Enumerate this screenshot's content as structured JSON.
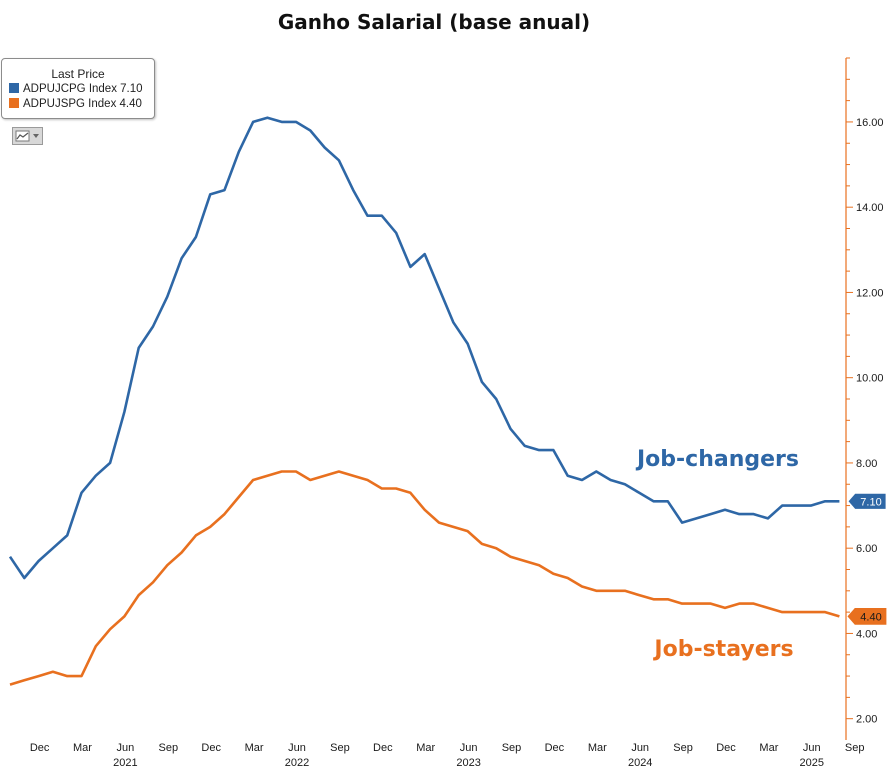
{
  "title": "Ganho Salarial (base anual)",
  "legend": {
    "header": "Last Price",
    "items": [
      {
        "label": "ADPUJCPG Index 7.10",
        "color": "#2e67a6"
      },
      {
        "label": "ADPUJSPG Index 4.40",
        "color": "#e8701f"
      }
    ]
  },
  "toolbar": {
    "icon": "chart-type-icon",
    "dropdown_icon": "chevron-down-icon"
  },
  "colors": {
    "changers": "#2e67a6",
    "stayers": "#e8701f",
    "axis": "#e8701f",
    "text": "#1a1a1a"
  },
  "chart_data": {
    "type": "line",
    "title": "Ganho Salarial (base anual)",
    "xlabel": "",
    "ylabel": "",
    "ylim": [
      1.5,
      17.5
    ],
    "y_ticks": [
      "2.00",
      "4.00",
      "6.00",
      "8.00",
      "10.00",
      "12.00",
      "14.00",
      "16.00"
    ],
    "y_axis_position": "right",
    "x_ticks": [
      {
        "month": "Dec",
        "year": ""
      },
      {
        "month": "Mar",
        "year": ""
      },
      {
        "month": "Jun",
        "year": "2021"
      },
      {
        "month": "Sep",
        "year": ""
      },
      {
        "month": "Dec",
        "year": ""
      },
      {
        "month": "Mar",
        "year": ""
      },
      {
        "month": "Jun",
        "year": "2022"
      },
      {
        "month": "Sep",
        "year": ""
      },
      {
        "month": "Dec",
        "year": ""
      },
      {
        "month": "Mar",
        "year": ""
      },
      {
        "month": "Jun",
        "year": "2023"
      },
      {
        "month": "Sep",
        "year": ""
      },
      {
        "month": "Dec",
        "year": ""
      },
      {
        "month": "Mar",
        "year": ""
      },
      {
        "month": "Jun",
        "year": "2024"
      },
      {
        "month": "Sep",
        "year": ""
      },
      {
        "month": "Dec",
        "year": ""
      },
      {
        "month": "Mar",
        "year": ""
      },
      {
        "month": "Jun",
        "year": "2025"
      },
      {
        "month": "Sep",
        "year": ""
      }
    ],
    "x": [
      "2020-10",
      "2020-11",
      "2020-12",
      "2021-01",
      "2021-02",
      "2021-03",
      "2021-04",
      "2021-05",
      "2021-06",
      "2021-07",
      "2021-08",
      "2021-09",
      "2021-10",
      "2021-11",
      "2021-12",
      "2022-01",
      "2022-02",
      "2022-03",
      "2022-04",
      "2022-05",
      "2022-06",
      "2022-07",
      "2022-08",
      "2022-09",
      "2022-10",
      "2022-11",
      "2022-12",
      "2023-01",
      "2023-02",
      "2023-03",
      "2023-04",
      "2023-05",
      "2023-06",
      "2023-07",
      "2023-08",
      "2023-09",
      "2023-10",
      "2023-11",
      "2023-12",
      "2024-01",
      "2024-02",
      "2024-03",
      "2024-04",
      "2024-05",
      "2024-06",
      "2024-07",
      "2024-08",
      "2024-09",
      "2024-10",
      "2024-11",
      "2024-12",
      "2025-01",
      "2025-02",
      "2025-03",
      "2025-04",
      "2025-05",
      "2025-06",
      "2025-07",
      "2025-08"
    ],
    "series": [
      {
        "name": "ADPUJCPG Index",
        "label": "Job-changers",
        "last_value": "7.10",
        "values": [
          5.8,
          5.3,
          5.7,
          6.0,
          6.3,
          7.3,
          7.7,
          8.0,
          9.2,
          10.7,
          11.2,
          11.9,
          12.8,
          13.3,
          14.3,
          14.4,
          15.3,
          16.0,
          16.1,
          16.0,
          16.0,
          15.8,
          15.4,
          15.1,
          14.4,
          13.8,
          13.8,
          13.4,
          12.6,
          12.9,
          12.1,
          11.3,
          10.8,
          9.9,
          9.5,
          8.8,
          8.4,
          8.3,
          8.3,
          7.7,
          7.6,
          7.8,
          7.6,
          7.5,
          7.3,
          7.1,
          7.1,
          6.6,
          6.7,
          6.8,
          6.9,
          6.8,
          6.8,
          6.7,
          7.0,
          7.0,
          7.0,
          7.1,
          7.1
        ]
      },
      {
        "name": "ADPUJSPG Index",
        "label": "Job-stayers",
        "last_value": "4.40",
        "values": [
          2.8,
          2.9,
          3.0,
          3.1,
          3.0,
          3.0,
          3.7,
          4.1,
          4.4,
          4.9,
          5.2,
          5.6,
          5.9,
          6.3,
          6.5,
          6.8,
          7.2,
          7.6,
          7.7,
          7.8,
          7.8,
          7.6,
          7.7,
          7.8,
          7.7,
          7.6,
          7.4,
          7.4,
          7.3,
          6.9,
          6.6,
          6.5,
          6.4,
          6.1,
          6.0,
          5.8,
          5.7,
          5.6,
          5.4,
          5.3,
          5.1,
          5.0,
          5.0,
          5.0,
          4.9,
          4.8,
          4.8,
          4.7,
          4.7,
          4.7,
          4.6,
          4.7,
          4.7,
          4.6,
          4.5,
          4.5,
          4.5,
          4.5,
          4.4
        ]
      }
    ]
  }
}
